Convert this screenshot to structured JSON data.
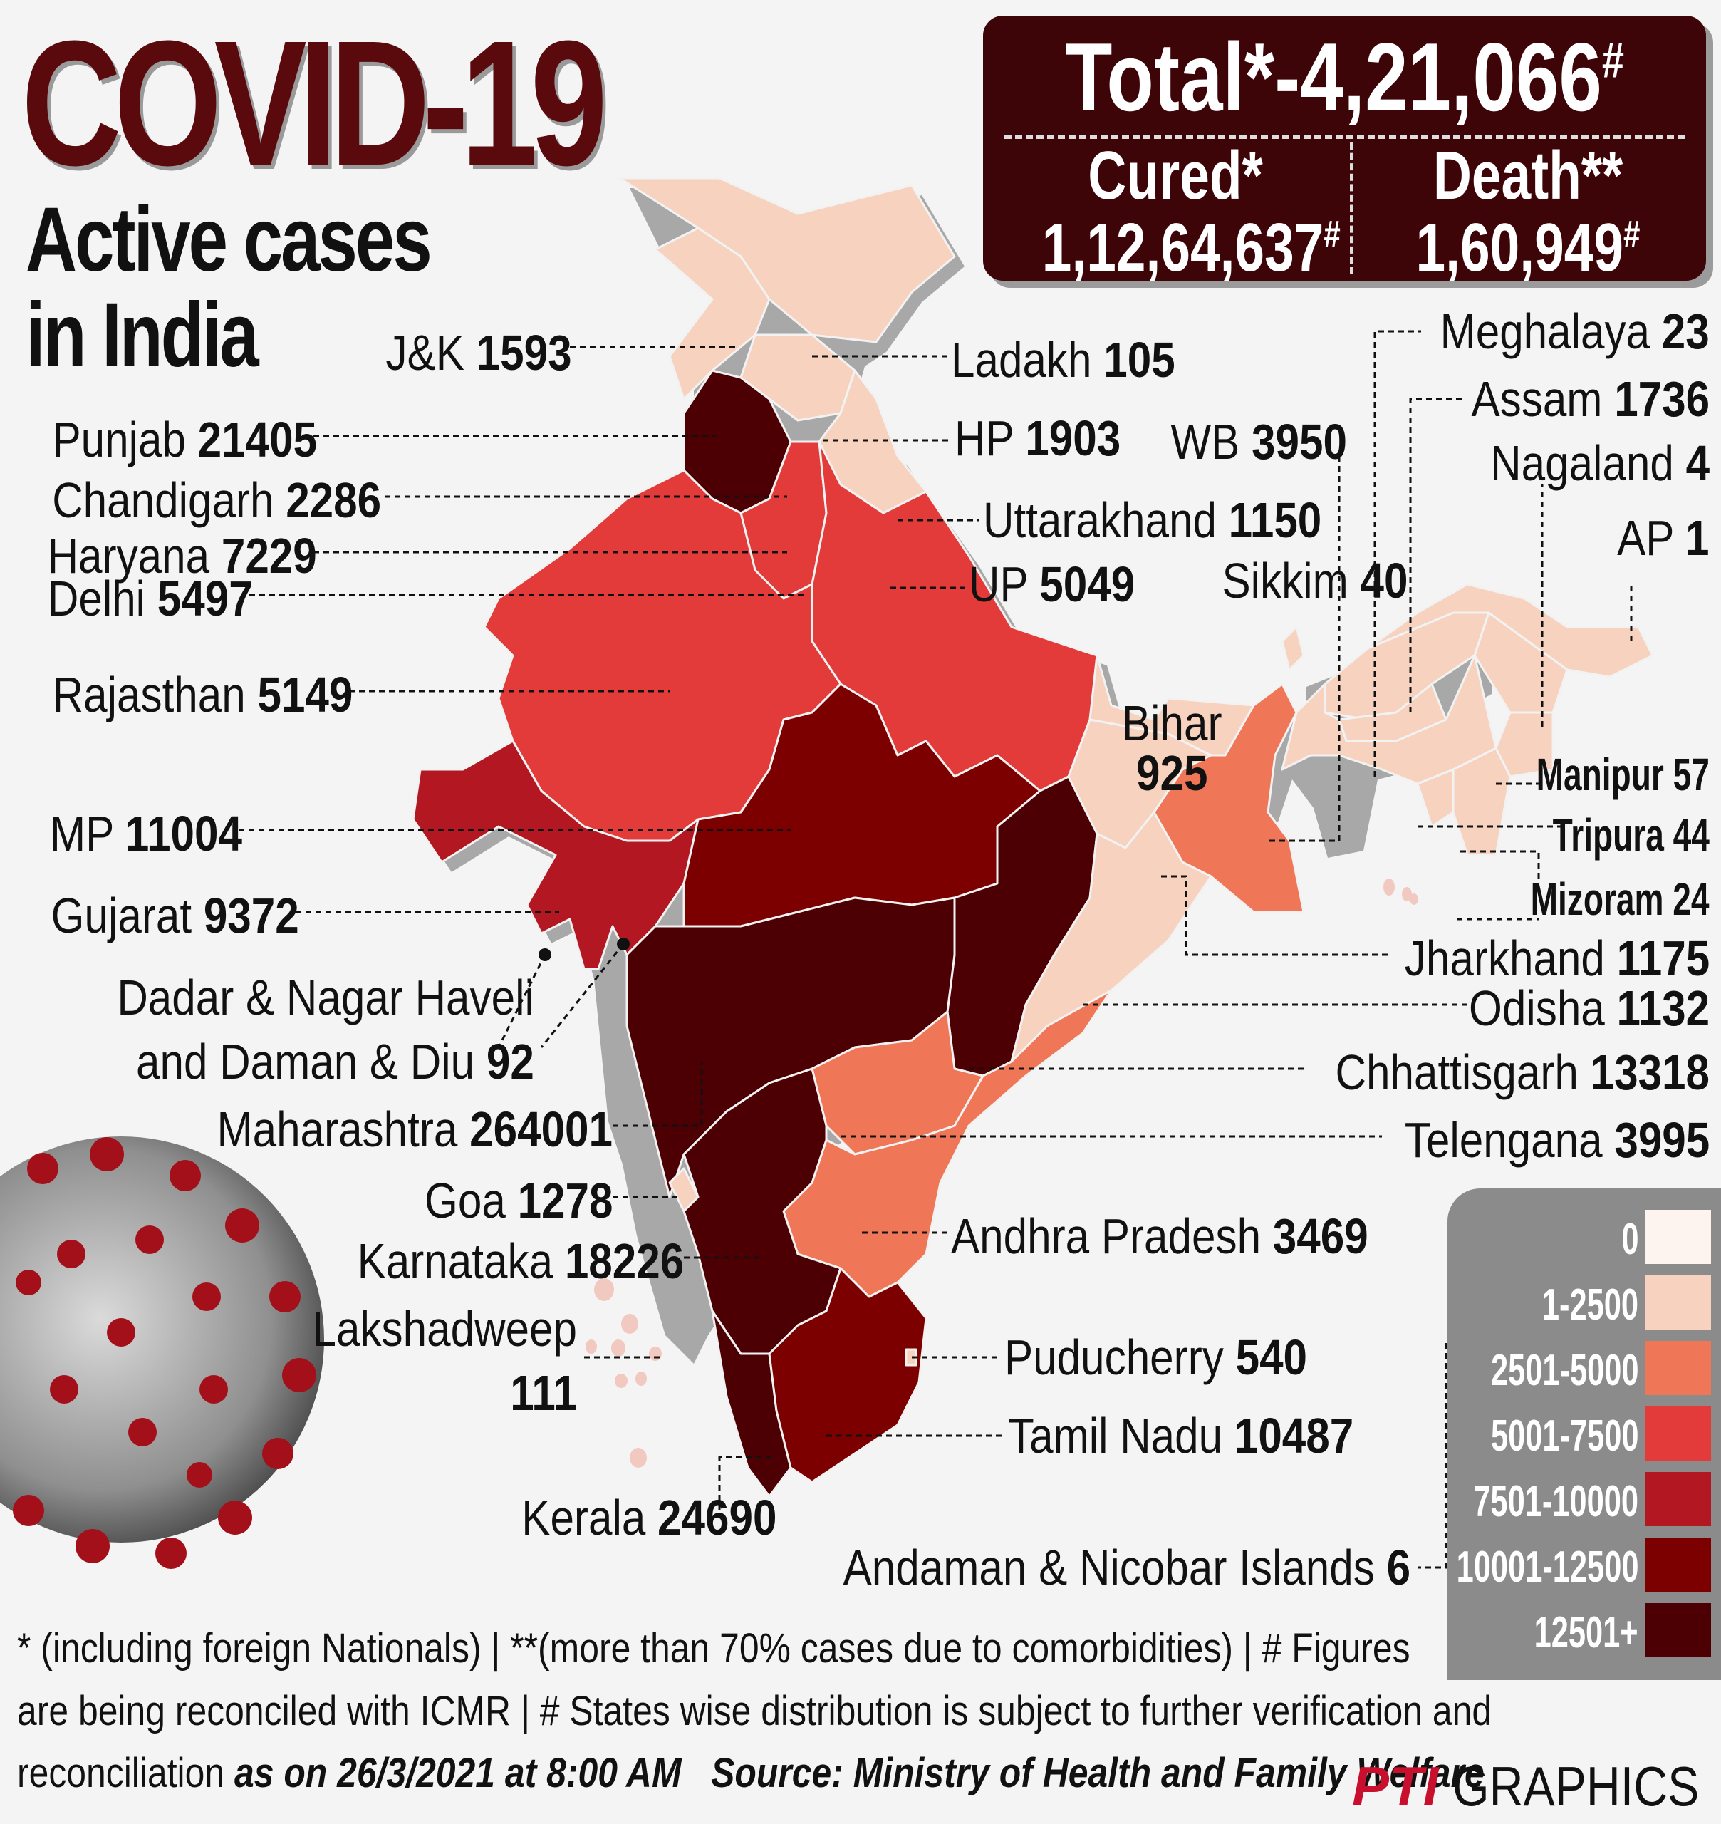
{
  "header": {
    "title": "COVID-19",
    "subtitle_line1": "Active cases",
    "subtitle_line2": "in India"
  },
  "totals": {
    "total_text": "Total*-4,21,066",
    "total_mark": "#",
    "cured_label": "Cured*",
    "cured_value": "1,12,64,637",
    "cured_mark": "#",
    "death_label": "Death**",
    "death_value": "1,60,949",
    "death_mark": "#"
  },
  "states": [
    {
      "name": "J&K",
      "value": "1593",
      "cases": 1593
    },
    {
      "name": "Ladakh",
      "value": "105",
      "cases": 105
    },
    {
      "name": "Punjab",
      "value": "21405",
      "cases": 21405
    },
    {
      "name": "HP",
      "value": "1903",
      "cases": 1903
    },
    {
      "name": "Chandigarh",
      "value": "2286",
      "cases": 2286
    },
    {
      "name": "Haryana",
      "value": "7229",
      "cases": 7229
    },
    {
      "name": "Uttarakhand",
      "value": "1150",
      "cases": 1150
    },
    {
      "name": "Delhi",
      "value": "5497",
      "cases": 5497
    },
    {
      "name": "UP",
      "value": "5049",
      "cases": 5049
    },
    {
      "name": "Rajasthan",
      "value": "5149",
      "cases": 5149
    },
    {
      "name": "MP",
      "value": "11004",
      "cases": 11004
    },
    {
      "name": "Gujarat",
      "value": "9372",
      "cases": 9372
    },
    {
      "name": "Dadar & Nagar Haveli",
      "name_line2": "and Daman & Diu",
      "value": "92",
      "cases": 92
    },
    {
      "name": "Maharashtra",
      "value": "264001",
      "cases": 264001
    },
    {
      "name": "Goa",
      "value": "1278",
      "cases": 1278
    },
    {
      "name": "Karnataka",
      "value": "18226",
      "cases": 18226
    },
    {
      "name": "Lakshadweep",
      "value": "111",
      "cases": 111
    },
    {
      "name": "Kerala",
      "value": "24690",
      "cases": 24690
    },
    {
      "name": "Tamil Nadu",
      "value": "10487",
      "cases": 10487
    },
    {
      "name": "Puducherry",
      "value": "540",
      "cases": 540
    },
    {
      "name": "Andhra Pradesh",
      "value": "3469",
      "cases": 3469
    },
    {
      "name": "Telengana",
      "value": "3995",
      "cases": 3995
    },
    {
      "name": "Chhattisgarh",
      "value": "13318",
      "cases": 13318
    },
    {
      "name": "Odisha",
      "value": "1132",
      "cases": 1132
    },
    {
      "name": "Jharkhand",
      "value": "1175",
      "cases": 1175
    },
    {
      "name": "Bihar",
      "value": "925",
      "cases": 925
    },
    {
      "name": "WB",
      "value": "3950",
      "cases": 3950
    },
    {
      "name": "Sikkim",
      "value": "40",
      "cases": 40
    },
    {
      "name": "Meghalaya",
      "value": "23",
      "cases": 23
    },
    {
      "name": "Assam",
      "value": "1736",
      "cases": 1736
    },
    {
      "name": "Nagaland",
      "value": "4",
      "cases": 4
    },
    {
      "name": "AP",
      "value": "1",
      "cases": 1
    },
    {
      "name": "Manipur",
      "value": "57",
      "cases": 57
    },
    {
      "name": "Tripura",
      "value": "44",
      "cases": 44
    },
    {
      "name": "Mizoram",
      "value": "24",
      "cases": 24
    },
    {
      "name": "Andaman & Nicobar Islands",
      "value": "6",
      "cases": 6
    }
  ],
  "legend": [
    {
      "label": "0",
      "color": "#fdf3ef"
    },
    {
      "label": "1-2500",
      "color": "#f7d2bf"
    },
    {
      "label": "2501-5000",
      "color": "#ef7757"
    },
    {
      "label": "5001-7500",
      "color": "#e23b39"
    },
    {
      "label": "7501-10000",
      "color": "#b31822"
    },
    {
      "label": "10001-12500",
      "color": "#7d0000"
    },
    {
      "label": "12501+",
      "color": "#4c0004"
    }
  ],
  "footer": {
    "line1": "* (including foreign Nationals) | **(more than 70% cases due to comorbidities) | # Figures",
    "line2": "are being reconciled with ICMR  | # States wise distribution is subject to further verification and",
    "line3_plain": "reconciliation ",
    "as_on": "as on 26/3/2021 at 8:00 AM",
    "source": "Source: Ministry of Health and Family Welfare"
  },
  "branding": {
    "pti": "PTI",
    "graphics": "GRAPHICS"
  }
}
